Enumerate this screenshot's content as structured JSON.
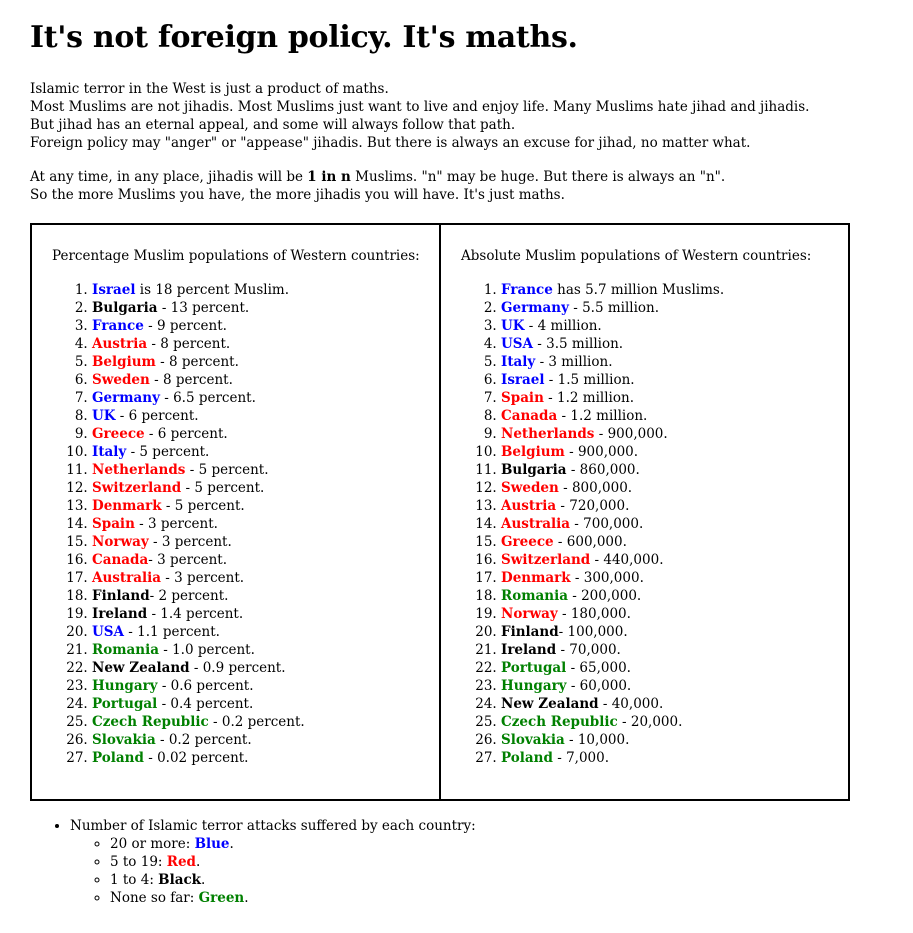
{
  "title": "It's not foreign policy. It's maths.",
  "intro": {
    "p1": [
      "Islamic terror in the West is just a product of maths.",
      "Most Muslims are not jihadis. Most Muslims just want to live and enjoy life. Many Muslims hate jihad and jihadis.",
      "But jihad has an eternal appeal, and some will always follow that path.",
      "Foreign policy may \"anger\" or \"appease\" jihadis. But there is always an excuse for jihad, no matter what."
    ],
    "p2_before": "At any time, in any place, jihadis will be ",
    "p2_bold": "1 in n",
    "p2_after": " Muslims. \"n\" may be huge. But there is always an \"n\".",
    "p2_line2": "So the more Muslims you have, the more jihadis you will have. It's just maths."
  },
  "colors": {
    "blue": "#0000ff",
    "red": "#ff0000",
    "black": "#000000",
    "green": "#008000"
  },
  "percentage": {
    "title": "Percentage Muslim populations of Western countries:",
    "items": [
      [
        "Israel",
        " is 18 percent Muslim.",
        "blue"
      ],
      [
        "Bulgaria",
        " - 13 percent.",
        "black"
      ],
      [
        "France",
        " - 9 percent.",
        "blue"
      ],
      [
        "Austria",
        " - 8 percent.",
        "red"
      ],
      [
        "Belgium",
        " - 8 percent.",
        "red"
      ],
      [
        "Sweden",
        " - 8 percent.",
        "red"
      ],
      [
        "Germany",
        " - 6.5 percent.",
        "blue"
      ],
      [
        "UK",
        " - 6 percent.",
        "blue"
      ],
      [
        "Greece",
        " - 6 percent.",
        "red"
      ],
      [
        "Italy",
        " - 5 percent.",
        "blue"
      ],
      [
        "Netherlands",
        " - 5 percent.",
        "red"
      ],
      [
        "Switzerland",
        " - 5 percent.",
        "red"
      ],
      [
        "Denmark",
        " - 5 percent.",
        "red"
      ],
      [
        "Spain",
        " - 3 percent.",
        "red"
      ],
      [
        "Norway",
        " - 3 percent.",
        "red"
      ],
      [
        "Canada",
        "- 3 percent.",
        "red"
      ],
      [
        "Australia",
        " - 3 percent.",
        "red"
      ],
      [
        "Finland",
        "- 2 percent.",
        "black"
      ],
      [
        "Ireland",
        " - 1.4 percent.",
        "black"
      ],
      [
        "USA",
        " - 1.1 percent.",
        "blue"
      ],
      [
        "Romania",
        " - 1.0 percent.",
        "green"
      ],
      [
        "New Zealand",
        " - 0.9 percent.",
        "black"
      ],
      [
        "Hungary",
        " - 0.6 percent.",
        "green"
      ],
      [
        "Portugal",
        " - 0.4 percent.",
        "green"
      ],
      [
        "Czech Republic",
        " - 0.2 percent.",
        "green"
      ],
      [
        "Slovakia",
        " - 0.2 percent.",
        "green"
      ],
      [
        "Poland",
        " - 0.02 percent.",
        "green"
      ]
    ]
  },
  "absolute": {
    "title": "Absolute Muslim populations of Western countries:",
    "items": [
      [
        "France",
        " has 5.7 million Muslims.",
        "blue"
      ],
      [
        "Germany",
        " - 5.5 million.",
        "blue"
      ],
      [
        "UK",
        " - 4 million.",
        "blue"
      ],
      [
        "USA",
        " - 3.5 million.",
        "blue"
      ],
      [
        "Italy",
        " - 3 million.",
        "blue"
      ],
      [
        "Israel",
        " - 1.5 million.",
        "blue"
      ],
      [
        "Spain",
        " - 1.2 million.",
        "red"
      ],
      [
        "Canada",
        " - 1.2 million.",
        "red"
      ],
      [
        "Netherlands",
        " - 900,000.",
        "red"
      ],
      [
        "Belgium",
        " - 900,000.",
        "red"
      ],
      [
        "Bulgaria",
        " - 860,000.",
        "black"
      ],
      [
        "Sweden",
        " - 800,000.",
        "red"
      ],
      [
        "Austria",
        " - 720,000.",
        "red"
      ],
      [
        "Australia",
        " - 700,000.",
        "red"
      ],
      [
        "Greece",
        " - 600,000.",
        "red"
      ],
      [
        "Switzerland",
        " - 440,000.",
        "red"
      ],
      [
        "Denmark",
        " - 300,000.",
        "red"
      ],
      [
        "Romania",
        " - 200,000.",
        "green"
      ],
      [
        "Norway",
        " - 180,000.",
        "red"
      ],
      [
        "Finland",
        "- 100,000.",
        "black"
      ],
      [
        "Ireland",
        " - 70,000.",
        "black"
      ],
      [
        "Portugal",
        " - 65,000.",
        "green"
      ],
      [
        "Hungary",
        " - 60,000.",
        "green"
      ],
      [
        "New Zealand",
        " - 40,000.",
        "black"
      ],
      [
        "Czech Republic",
        " - 20,000.",
        "green"
      ],
      [
        "Slovakia",
        " - 10,000.",
        "green"
      ],
      [
        "Poland",
        " - 7,000.",
        "green"
      ]
    ]
  },
  "legend": {
    "heading": "Number of Islamic terror attacks suffered by each country:",
    "items": [
      [
        "20 or more: ",
        "Blue",
        "blue"
      ],
      [
        "5 to 19: ",
        "Red",
        "red"
      ],
      [
        "1 to 4: ",
        "Black",
        "black"
      ],
      [
        "None so far: ",
        "Green",
        "green"
      ]
    ]
  }
}
